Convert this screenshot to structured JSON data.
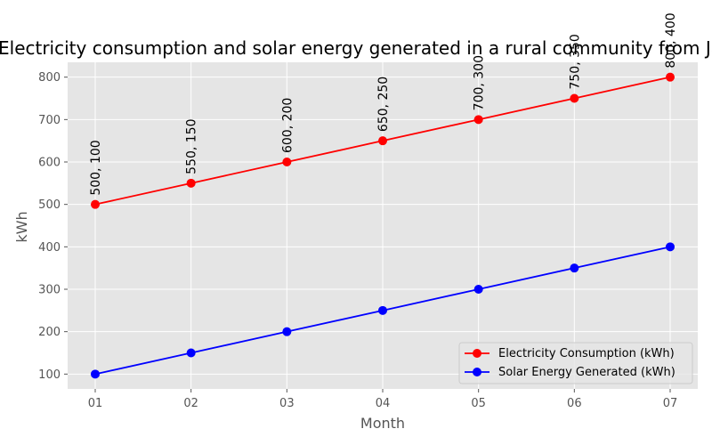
{
  "chart_data": {
    "type": "line",
    "title": "Electricity consumption and solar energy generated in a rural community from Ja",
    "xlabel": "Month",
    "ylabel": "kWh",
    "categories": [
      "01",
      "02",
      "03",
      "04",
      "05",
      "06",
      "07"
    ],
    "yticks": [
      100,
      200,
      300,
      400,
      500,
      600,
      700,
      800
    ],
    "ylim": [
      65,
      835
    ],
    "grid": true,
    "legend_position": "lower-right",
    "series": [
      {
        "name": "Electricity Consumption (kWh)",
        "color": "#ff0000",
        "values": [
          500,
          550,
          600,
          650,
          700,
          750,
          800
        ]
      },
      {
        "name": "Solar Energy Generated (kWh)",
        "color": "#0000ff",
        "values": [
          100,
          150,
          200,
          250,
          300,
          350,
          400
        ]
      }
    ],
    "point_labels": [
      "500, 100",
      "550, 150",
      "600, 200",
      "650, 250",
      "700, 300",
      "750, 350",
      "800, 400"
    ]
  },
  "colors": {
    "plot_background": "#e5e5e5",
    "grid": "#ffffff"
  }
}
